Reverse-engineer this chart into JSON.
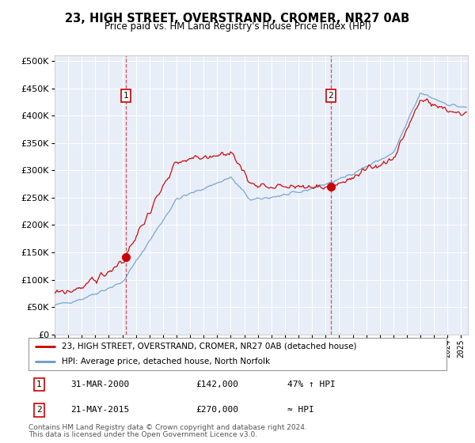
{
  "title": "23, HIGH STREET, OVERSTRAND, CROMER, NR27 0AB",
  "subtitle": "Price paid vs. HM Land Registry's House Price Index (HPI)",
  "legend_line1": "23, HIGH STREET, OVERSTRAND, CROMER, NR27 0AB (detached house)",
  "legend_line2": "HPI: Average price, detached house, North Norfolk",
  "footer1": "Contains HM Land Registry data © Crown copyright and database right 2024.",
  "footer2": "This data is licensed under the Open Government Licence v3.0.",
  "annotation1_date": "31-MAR-2000",
  "annotation1_price": "£142,000",
  "annotation1_hpi": "47% ↑ HPI",
  "annotation2_date": "21-MAY-2015",
  "annotation2_price": "£270,000",
  "annotation2_hpi": "≈ HPI",
  "sale1_x": 2000.25,
  "sale1_y": 142000,
  "sale2_x": 2015.39,
  "sale2_y": 270000,
  "hpi_color": "#6699CC",
  "price_color": "#CC0000",
  "bg_color": "#E8EEF8",
  "ylim_max": 510000,
  "yticks": [
    0,
    50000,
    100000,
    150000,
    200000,
    250000,
    300000,
    350000,
    400000,
    450000,
    500000
  ],
  "xlim_start": 1995.0,
  "xlim_end": 2025.5
}
